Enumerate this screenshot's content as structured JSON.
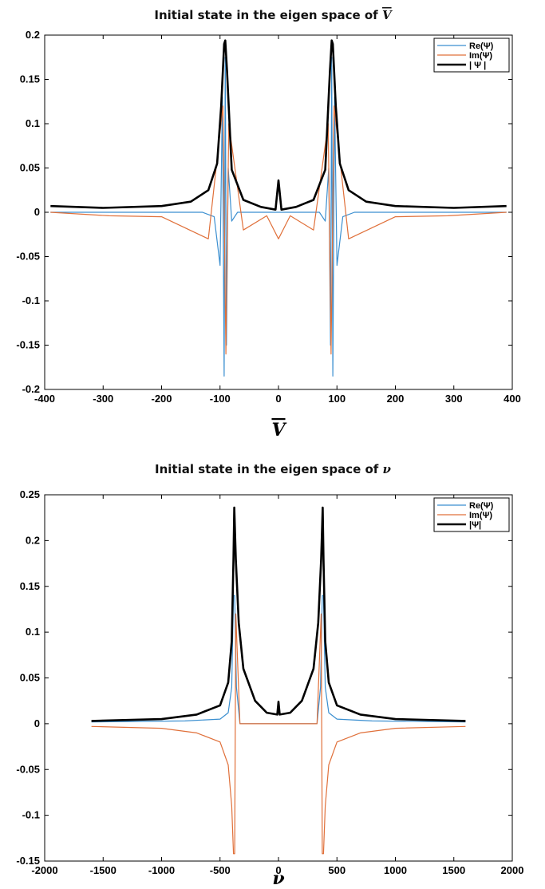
{
  "chart_data": [
    {
      "type": "line",
      "title": "Initial state in the eigen space of V̄",
      "xlabel": "V̄",
      "ylabel": "",
      "xlim": [
        -400,
        400
      ],
      "ylim": [
        -0.2,
        0.2
      ],
      "xticks": [
        "-400",
        "-300",
        "-200",
        "-100",
        "0",
        "100",
        "200",
        "300",
        "400"
      ],
      "yticks": [
        "0.2",
        "0.15",
        "0.1",
        "0.05",
        "0",
        "-0.05",
        "-0.1",
        "-0.15",
        "-0.2"
      ],
      "legend_position": "top-right",
      "series": [
        {
          "name": "Re(Ψ)",
          "color": "#3b8fd0",
          "x": [
            -390,
            -300,
            -200,
            -130,
            -110,
            -100,
            -96,
            -93,
            -91,
            -89,
            -86,
            -80,
            -70,
            -40,
            0,
            40,
            70,
            80,
            86,
            89,
            91,
            93,
            96,
            100,
            110,
            130,
            200,
            300,
            390
          ],
          "y": [
            0,
            0,
            0,
            0,
            -0.005,
            -0.06,
            0.13,
            -0.185,
            0.175,
            -0.15,
            0.05,
            -0.01,
            0,
            0,
            0,
            0,
            0,
            -0.01,
            0.05,
            -0.15,
            0.175,
            -0.185,
            0.13,
            -0.06,
            -0.005,
            0,
            0,
            0,
            0
          ]
        },
        {
          "name": "Im(Ψ)",
          "color": "#e0703a",
          "x": [
            -390,
            -290,
            -200,
            -120,
            -95,
            -90,
            -85,
            -60,
            -20,
            0,
            20,
            60,
            85,
            90,
            95,
            120,
            200,
            290,
            390
          ],
          "y": [
            0,
            -0.004,
            -0.005,
            -0.03,
            0.12,
            -0.16,
            0.1,
            -0.02,
            -0.004,
            -0.03,
            -0.004,
            -0.02,
            0.1,
            -0.16,
            0.12,
            -0.03,
            -0.005,
            -0.004,
            0
          ]
        },
        {
          "name": "| Ψ |",
          "color": "#000000",
          "x": [
            -390,
            -300,
            -200,
            -150,
            -120,
            -105,
            -98,
            -93,
            -91,
            -88,
            -80,
            -60,
            -30,
            -5,
            0,
            5,
            30,
            60,
            80,
            88,
            91,
            93,
            98,
            105,
            120,
            150,
            200,
            300,
            390
          ],
          "y": [
            0.007,
            0.005,
            0.007,
            0.012,
            0.025,
            0.055,
            0.12,
            0.19,
            0.194,
            0.16,
            0.048,
            0.014,
            0.006,
            0.003,
            0.036,
            0.003,
            0.006,
            0.014,
            0.048,
            0.16,
            0.194,
            0.19,
            0.12,
            0.055,
            0.025,
            0.012,
            0.007,
            0.005,
            0.007
          ]
        }
      ]
    },
    {
      "type": "line",
      "title": "Initial state in the eigen space of ν",
      "xlabel": "ν",
      "ylabel": "",
      "xlim": [
        -2000,
        2000
      ],
      "ylim": [
        -0.15,
        0.25
      ],
      "xticks": [
        "-2000",
        "-1500",
        "-1000",
        "-500",
        "0",
        "500",
        "1000",
        "1500",
        "2000"
      ],
      "yticks": [
        "0.25",
        "0.2",
        "0.15",
        "0.1",
        "0.05",
        "0",
        "-0.05",
        "-0.1",
        "-0.15"
      ],
      "legend_position": "top-right",
      "series": [
        {
          "name": "Re(Ψ)",
          "color": "#3b8fd0",
          "x": [
            -1600,
            -800,
            -500,
            -430,
            -400,
            -385,
            -375,
            -360,
            -330,
            0,
            330,
            360,
            375,
            385,
            400,
            430,
            500,
            800,
            1600
          ],
          "y": [
            0.002,
            0.003,
            0.005,
            0.012,
            0.04,
            0.14,
            0.14,
            0.04,
            0,
            0,
            0,
            0.04,
            0.14,
            0.14,
            0.04,
            0.012,
            0.005,
            0.003,
            0.002
          ]
        },
        {
          "name": "Im(Ψ)",
          "color": "#e0703a",
          "x": [
            -1600,
            -1000,
            -700,
            -500,
            -430,
            -400,
            -385,
            -375,
            -365,
            -330,
            0,
            330,
            365,
            375,
            385,
            400,
            430,
            500,
            700,
            1000,
            1600
          ],
          "y": [
            -0.003,
            -0.005,
            -0.01,
            -0.02,
            -0.045,
            -0.09,
            -0.142,
            -0.142,
            0.12,
            0,
            0,
            0,
            0.12,
            -0.142,
            -0.142,
            -0.09,
            -0.045,
            -0.02,
            -0.01,
            -0.005,
            -0.003
          ]
        },
        {
          "name": "|Ψ|",
          "color": "#000000",
          "x": [
            -1600,
            -1000,
            -700,
            -500,
            -430,
            -400,
            -385,
            -378,
            -365,
            -340,
            -300,
            -200,
            -100,
            -10,
            0,
            10,
            100,
            200,
            300,
            340,
            365,
            378,
            385,
            400,
            430,
            500,
            700,
            1000,
            1600
          ],
          "y": [
            0.003,
            0.005,
            0.01,
            0.02,
            0.045,
            0.09,
            0.18,
            0.236,
            0.18,
            0.11,
            0.06,
            0.025,
            0.012,
            0.01,
            0.024,
            0.01,
            0.012,
            0.025,
            0.06,
            0.11,
            0.18,
            0.236,
            0.18,
            0.09,
            0.045,
            0.02,
            0.01,
            0.005,
            0.003
          ]
        }
      ]
    }
  ]
}
